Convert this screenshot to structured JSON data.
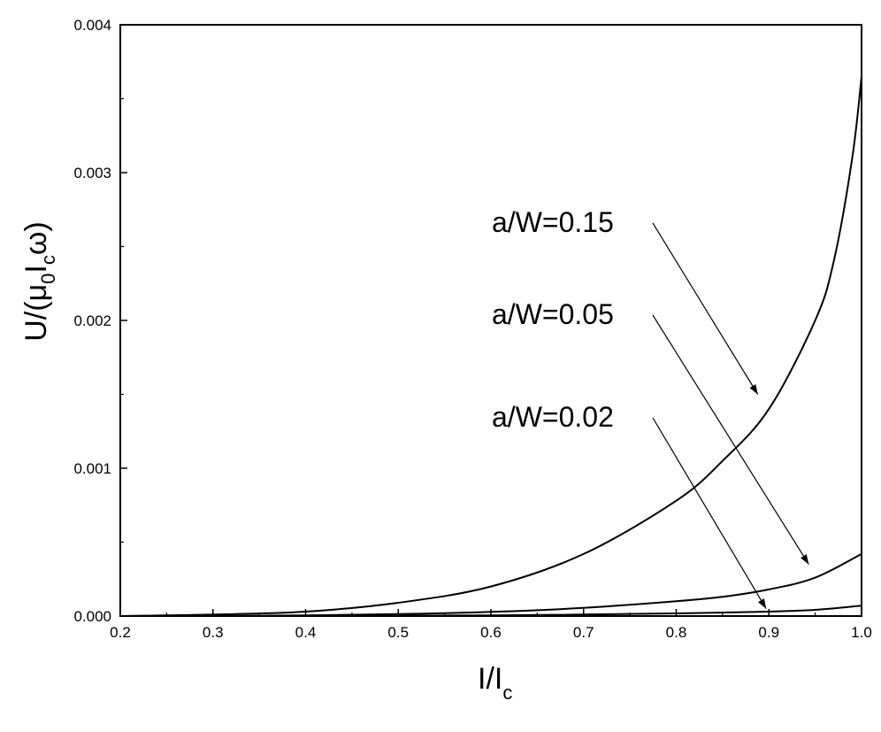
{
  "chart_data": {
    "type": "line",
    "xlabel": "I/I",
    "xlabel_sub": "c",
    "ylabel_parts": {
      "a": "U/(μ",
      "b": "0",
      "c": "I",
      "d": "c",
      "e": "ω)"
    },
    "xlim": [
      0.2,
      1.0
    ],
    "ylim": [
      0.0,
      0.004
    ],
    "xticks": [
      "0.2",
      "0.3",
      "0.4",
      "0.5",
      "0.6",
      "0.7",
      "0.8",
      "0.9",
      "1.0"
    ],
    "yticks": [
      "0.000",
      "0.001",
      "0.002",
      "0.003",
      "0.004"
    ],
    "grid": false,
    "series": [
      {
        "name": "a/W=0.15",
        "x": [
          0.2,
          0.3,
          0.4,
          0.5,
          0.6,
          0.7,
          0.8,
          0.85,
          0.9,
          0.95,
          0.97,
          0.99,
          1.0
        ],
        "y": [
          0.0,
          1e-05,
          3e-05,
          9e-05,
          0.0002,
          0.00042,
          0.00078,
          0.00105,
          0.0014,
          0.002,
          0.0024,
          0.0031,
          0.00365
        ]
      },
      {
        "name": "a/W=0.05",
        "x": [
          0.2,
          0.3,
          0.4,
          0.5,
          0.6,
          0.7,
          0.8,
          0.85,
          0.9,
          0.95,
          1.0
        ],
        "y": [
          0.0,
          0.0,
          5e-06,
          1.3e-05,
          2.8e-05,
          5.5e-05,
          0.0001,
          0.00013,
          0.00018,
          0.00026,
          0.00042
        ]
      },
      {
        "name": "a/W=0.02",
        "x": [
          0.2,
          0.4,
          0.6,
          0.7,
          0.8,
          0.9,
          0.95,
          1.0
        ],
        "y": [
          0.0,
          0.0,
          5e-06,
          1e-05,
          1.8e-05,
          3e-05,
          4.2e-05,
          7e-05
        ]
      }
    ],
    "annotations": [
      {
        "text": "a/W=0.15",
        "points_to": {
          "x": 0.888,
          "y": 0.0015
        }
      },
      {
        "text": "a/W=0.05",
        "points_to": {
          "x": 0.943,
          "y": 0.00035
        }
      },
      {
        "text": "a/W=0.02",
        "points_to": {
          "x": 0.897,
          "y": 5e-05
        }
      }
    ]
  }
}
